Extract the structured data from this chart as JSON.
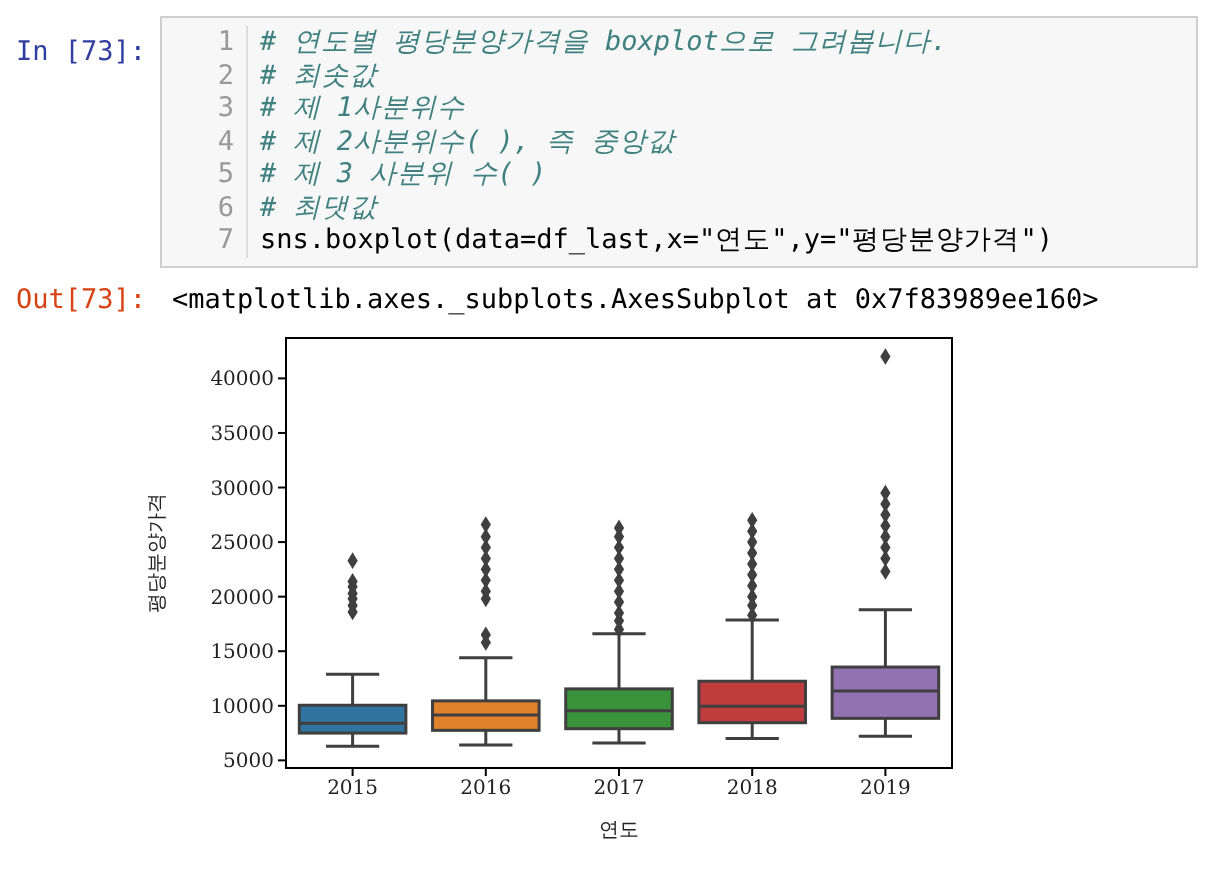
{
  "chart_data": {
    "type": "box",
    "xlabel": "연도",
    "ylabel": "평당분양가격",
    "categories": [
      "2015",
      "2016",
      "2017",
      "2018",
      "2019"
    ],
    "colors": [
      "#3274a1",
      "#e1812c",
      "#3a923a",
      "#c03d3e",
      "#9372b2"
    ],
    "boxes": [
      {
        "low": 6300,
        "q1": 7500,
        "median": 8400,
        "q3": 10050,
        "high": 12900,
        "outliers": [
          18600,
          19200,
          19800,
          20300,
          20900,
          21400,
          23300
        ]
      },
      {
        "low": 6400,
        "q1": 7750,
        "median": 9150,
        "q3": 10450,
        "high": 14400,
        "outliers": [
          15800,
          16500,
          19800,
          20500,
          21500,
          22500,
          23500,
          24500,
          25500,
          26600
        ]
      },
      {
        "low": 6600,
        "q1": 7900,
        "median": 9550,
        "q3": 11550,
        "high": 16600,
        "outliers": [
          17000,
          17800,
          18500,
          19500,
          20500,
          21500,
          22500,
          23500,
          24500,
          25500,
          26300
        ]
      },
      {
        "low": 7000,
        "q1": 8450,
        "median": 9950,
        "q3": 12250,
        "high": 17850,
        "outliers": [
          18300,
          19200,
          20000,
          21000,
          22000,
          23000,
          24000,
          25000,
          26000,
          27000
        ]
      },
      {
        "low": 7200,
        "q1": 8850,
        "median": 11350,
        "q3": 13550,
        "high": 18800,
        "outliers": [
          22300,
          23500,
          24500,
          25500,
          26500,
          27500,
          28500,
          29500,
          42000
        ]
      }
    ],
    "ylim": [
      4300,
      43700
    ],
    "yticks": [
      5000,
      10000,
      15000,
      20000,
      25000,
      30000,
      35000,
      40000
    ],
    "grid": false,
    "marker": "diamond",
    "annotations": [
      "In [73]:",
      "1",
      "2",
      "3",
      "4",
      "5",
      "6",
      "7",
      "# 연도별 평당분양가격을 boxplot으로 그려봅니다.",
      "# 최솟값",
      "# 제 1사분위수",
      "# 제 2사분위수( ), 즉 중앙값",
      "# 제 3 사분위 수( )",
      "# 최댓값",
      "sns.boxplot(data=df_last,x=\"연도\",y=\"평당분양가격\")",
      "Out[73]:",
      "<matplotlib.axes._subplots.AxesSubplot at 0x7f83989ee160>"
    ]
  }
}
